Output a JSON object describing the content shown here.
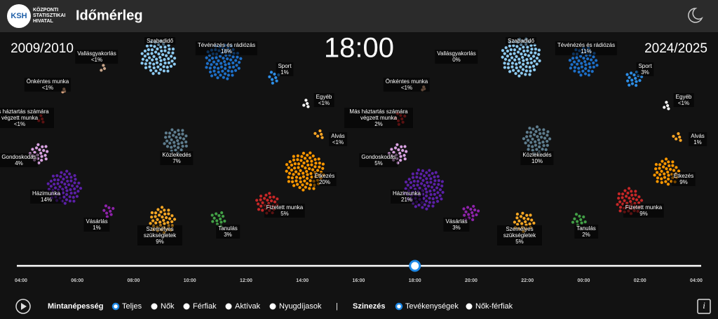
{
  "header": {
    "logo": "KSH",
    "org_lines": [
      "KÖZPONTI",
      "STATISZTIKAI",
      "HIVATAL"
    ],
    "title": "Időmérleg"
  },
  "clock": "18:00",
  "activity_colors": [
    "#8ecbf2",
    "#1f70c8",
    "#c8a58a",
    "#2e8ee6",
    "#d7a27e",
    "#ffffff",
    "#c62828",
    "#ffa726",
    "#5f7d8e",
    "#dba4e3",
    "#ff9800",
    "#5b21a6",
    "#c62828",
    "#8e24aa",
    "#43a047",
    "#f9a825"
  ],
  "panels": [
    {
      "year": "2009/2010",
      "activities": [
        {
          "label": "Szabadidő"
        },
        {
          "label": "Tévénézés és rádiózás",
          "percent": "18%"
        },
        {
          "label": "Vallásgyakorlás",
          "percent": "<1%"
        },
        {
          "label": "Sport",
          "percent": "1%"
        },
        {
          "label": "Önkéntes munka",
          "percent": "<1%"
        },
        {
          "label": "Egyéb",
          "percent": "<1%"
        },
        {
          "label": "Más háztartás számára végzett munka",
          "percent": "<1%"
        },
        {
          "label": "Alvás",
          "percent": "<1%"
        },
        {
          "label": "Közlekedés",
          "percent": "7%"
        },
        {
          "label": "Gondoskodás",
          "percent": "4%"
        },
        {
          "label": "Étkezés",
          "percent": "20%"
        },
        {
          "label": "Házimunka",
          "percent": "14%"
        },
        {
          "label": "Fizetett munka",
          "percent": "5%"
        },
        {
          "label": "Vásárlás",
          "percent": "1%"
        },
        {
          "label": "Tanulás",
          "percent": "3%"
        },
        {
          "label": "Személyes szükségletek",
          "percent": "9%"
        }
      ]
    },
    {
      "year": "2024/2025",
      "activities": [
        {
          "label": "Szabadidő"
        },
        {
          "label": "Tévénézés és rádiózás",
          "percent": "11%"
        },
        {
          "label": "Vallásgyakorlás",
          "percent": "0%"
        },
        {
          "label": "Sport",
          "percent": "3%"
        },
        {
          "label": "Önkéntes munka",
          "percent": "<1%"
        },
        {
          "label": "Egyéb",
          "percent": "<1%"
        },
        {
          "label": "Más háztartás számára végzett munka",
          "percent": "2%"
        },
        {
          "label": "Alvás",
          "percent": "1%"
        },
        {
          "label": "Közlekedés",
          "percent": "10%"
        },
        {
          "label": "Gondoskodás",
          "percent": "5%"
        },
        {
          "label": "Étkezés",
          "percent": "9%"
        },
        {
          "label": "Házimunka",
          "percent": "21%"
        },
        {
          "label": "Fizetett munka",
          "percent": "9%"
        },
        {
          "label": "Vásárlás",
          "percent": "3%"
        },
        {
          "label": "Tanulás",
          "percent": "2%"
        },
        {
          "label": "Személyes szükségletek",
          "percent": "5%"
        }
      ]
    }
  ],
  "timeline": {
    "ticks": [
      "04:00",
      "06:00",
      "08:00",
      "10:00",
      "12:00",
      "14:00",
      "16:00",
      "18:00",
      "20:00",
      "22:00",
      "00:00",
      "02:00",
      "04:00"
    ],
    "selected": 7
  },
  "controls": {
    "population_label": "Mintanépesség",
    "population_options": [
      "Teljes",
      "Nők",
      "Férfiak",
      "Aktívak",
      "Nyugdíjasok"
    ],
    "population_selected": 0,
    "separator": "|",
    "coloring_label": "Szinezés",
    "coloring_options": [
      "Tevékenységek",
      "Nők-férfiak"
    ],
    "coloring_selected": 0,
    "info": "i"
  }
}
